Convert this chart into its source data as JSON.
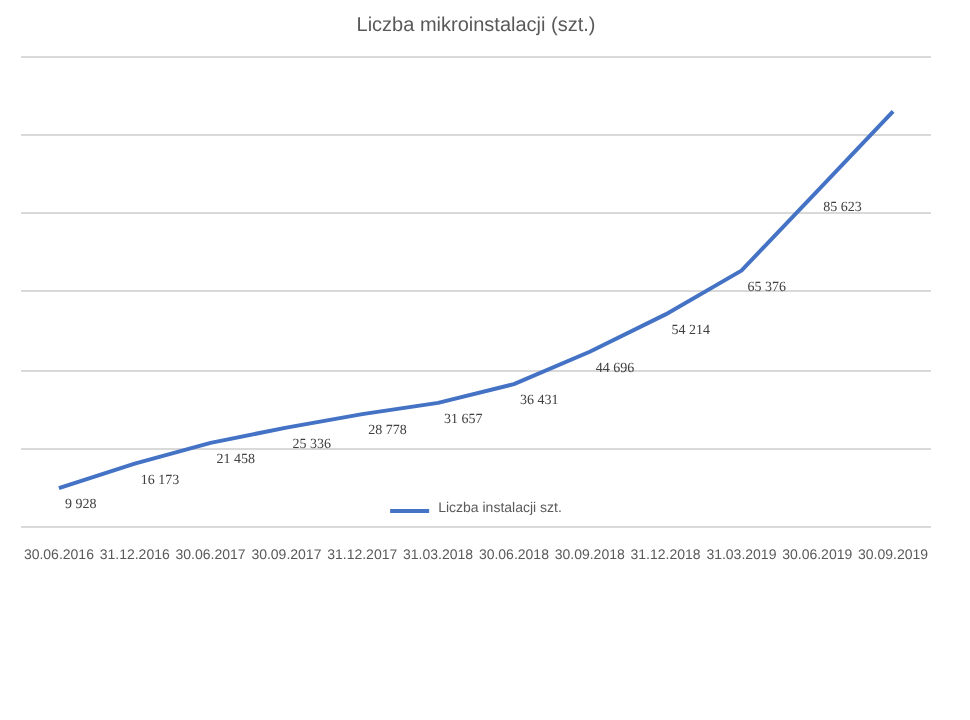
{
  "chart_data": {
    "type": "line",
    "title": "Liczba mikroinstalacji (szt.)",
    "categories": [
      "30.06.2016",
      "31.12.2016",
      "30.06.2017",
      "30.09.2017",
      "31.12.2017",
      "31.03.2018",
      "30.06.2018",
      "30.09.2018",
      "31.12.2018",
      "31.03.2019",
      "30.06.2019",
      "30.09.2019"
    ],
    "series": [
      {
        "name": "Liczba instalacji szt.",
        "color": "#4472c4",
        "values": [
          9928,
          16173,
          21458,
          25336,
          28778,
          31657,
          36431,
          44696,
          54214,
          65376,
          85623,
          106000
        ],
        "value_labels": [
          "9 928",
          "16 173",
          "21 458",
          "25 336",
          "28 778",
          "31 657",
          "36 431",
          "44 696",
          "54 214",
          "65 376",
          "85 623",
          null
        ]
      }
    ],
    "yticks": [
      {
        "value": 0,
        "label": null
      },
      {
        "value": 20000,
        "label": null
      },
      {
        "value": 40000,
        "label": null
      },
      {
        "value": 60000,
        "label": null
      },
      {
        "value": 80000,
        "label": null
      },
      {
        "value": 100000,
        "label": null
      },
      {
        "value": 120000,
        "label": null
      }
    ],
    "tick_labels": "x",
    "grid": "y",
    "legend": "bottom",
    "marker": "none",
    "line_style": "solid"
  }
}
